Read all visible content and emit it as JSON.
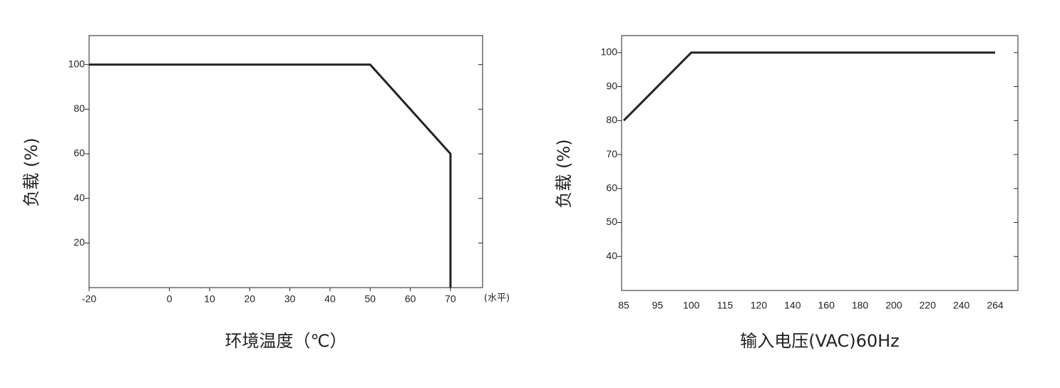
{
  "chart_data": [
    {
      "type": "line",
      "x": [
        -20,
        50,
        70,
        70
      ],
      "values": [
        100,
        100,
        60,
        0
      ],
      "color": "#222222",
      "xlim": [
        -20,
        78
      ],
      "ylim": [
        0,
        113
      ],
      "xticks": [
        -20,
        0,
        10,
        20,
        30,
        40,
        50,
        60,
        70
      ],
      "yticks": [
        20,
        40,
        60,
        80,
        100
      ],
      "x_label": "环境温度（℃）",
      "y_label": "负载 (%)",
      "annotation": "(水平)"
    },
    {
      "type": "category_line",
      "categories": [
        "85",
        "95",
        "100",
        "115",
        "120",
        "140",
        "160",
        "180",
        "200",
        "220",
        "240",
        "264"
      ],
      "values": [
        80,
        90,
        100,
        100,
        100,
        100,
        100,
        100,
        100,
        100,
        100,
        100
      ],
      "color": "#222222",
      "ylim": [
        30,
        105
      ],
      "yticks": [
        40,
        50,
        60,
        70,
        80,
        90,
        100
      ],
      "x_label": "输入电压(VAC)60Hz",
      "y_label": "负载 (%)"
    }
  ]
}
